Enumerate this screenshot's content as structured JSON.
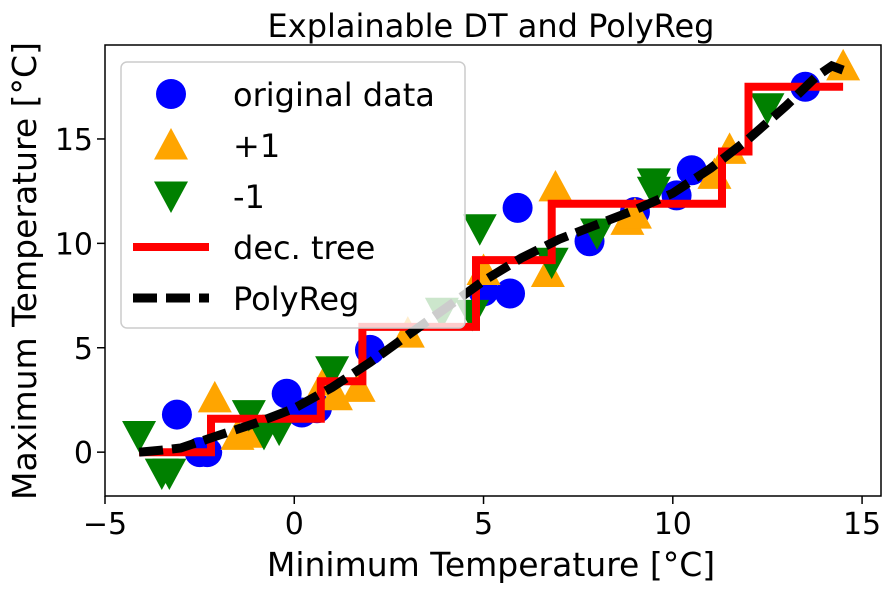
{
  "chart_data": {
    "type": "scatter",
    "title": "Explainable DT and PolyReg",
    "xlabel": "Minimum Temperature [°C]",
    "ylabel": "Maximum Temperature [°C]",
    "xlim": [
      -5,
      15.5
    ],
    "ylim": [
      -2.1,
      19.5
    ],
    "xticks": [
      -5,
      0,
      5,
      10,
      15
    ],
    "xtick_labels": [
      "−5",
      "0",
      "5",
      "10",
      "15"
    ],
    "yticks": [
      0,
      5,
      10,
      15
    ],
    "ytick_labels": [
      "0",
      "5",
      "10",
      "15"
    ],
    "grid": false,
    "legend_position": "upper-left",
    "series": [
      {
        "name": "original data",
        "kind": "scatter",
        "marker": "circle",
        "color": "#0000ff",
        "points": [
          [
            -3.1,
            1.8
          ],
          [
            -2.5,
            0.0
          ],
          [
            -2.3,
            0.0
          ],
          [
            -0.2,
            2.8
          ],
          [
            0.2,
            1.9
          ],
          [
            0.6,
            2.1
          ],
          [
            2.0,
            4.9
          ],
          [
            5.0,
            7.7
          ],
          [
            5.7,
            7.6
          ],
          [
            5.9,
            11.7
          ],
          [
            7.8,
            10.1
          ],
          [
            9.0,
            11.5
          ],
          [
            10.1,
            12.3
          ],
          [
            10.5,
            13.5
          ],
          [
            13.5,
            17.5
          ]
        ]
      },
      {
        "name": "+1",
        "kind": "scatter",
        "marker": "triangle-up",
        "color": "#ffa500",
        "points": [
          [
            -2.1,
            2.6
          ],
          [
            -1.5,
            0.8
          ],
          [
            -1.2,
            0.9
          ],
          [
            0.8,
            3.4
          ],
          [
            1.1,
            2.7
          ],
          [
            1.7,
            3.1
          ],
          [
            3.0,
            5.7
          ],
          [
            5.0,
            8.7
          ],
          [
            6.7,
            8.6
          ],
          [
            6.9,
            12.7
          ],
          [
            8.8,
            11.1
          ],
          [
            9.0,
            11.4
          ],
          [
            11.1,
            13.3
          ],
          [
            11.5,
            14.5
          ],
          [
            14.5,
            18.5
          ]
        ]
      },
      {
        "name": "-1",
        "kind": "scatter",
        "marker": "triangle-down",
        "color": "#008000",
        "points": [
          [
            -4.1,
            0.8
          ],
          [
            -3.5,
            -1.0
          ],
          [
            -3.3,
            -1.0
          ],
          [
            -1.2,
            1.8
          ],
          [
            -0.8,
            0.9
          ],
          [
            -0.4,
            1.1
          ],
          [
            1.0,
            3.9
          ],
          [
            3.9,
            6.7
          ],
          [
            4.7,
            6.6
          ],
          [
            4.9,
            10.7
          ],
          [
            6.8,
            9.1
          ],
          [
            8.0,
            10.5
          ],
          [
            9.5,
            12.9
          ],
          [
            9.5,
            12.5
          ],
          [
            12.5,
            16.5
          ]
        ]
      },
      {
        "name": "dec. tree",
        "kind": "step",
        "color": "#ff0000",
        "points": [
          [
            -4.1,
            0.0
          ],
          [
            -2.2,
            0.0
          ],
          [
            -2.2,
            1.6
          ],
          [
            0.7,
            1.6
          ],
          [
            0.7,
            3.4
          ],
          [
            1.8,
            3.4
          ],
          [
            1.8,
            6.0
          ],
          [
            4.8,
            6.0
          ],
          [
            4.8,
            9.2
          ],
          [
            6.8,
            9.2
          ],
          [
            6.8,
            11.9
          ],
          [
            11.3,
            11.9
          ],
          [
            11.3,
            14.4
          ],
          [
            12.0,
            14.4
          ],
          [
            12.0,
            17.5
          ],
          [
            14.5,
            17.5
          ]
        ]
      },
      {
        "name": "PolyReg",
        "kind": "line",
        "style": "dashed",
        "color": "#000000",
        "points": [
          [
            -4.1,
            0.0
          ],
          [
            -3.5,
            0.1
          ],
          [
            -3.0,
            0.2
          ],
          [
            -2.5,
            0.5
          ],
          [
            -2.0,
            0.8
          ],
          [
            -1.0,
            1.4
          ],
          [
            0.0,
            2.1
          ],
          [
            1.0,
            3.1
          ],
          [
            2.0,
            4.3
          ],
          [
            3.0,
            5.6
          ],
          [
            4.0,
            6.9
          ],
          [
            5.0,
            8.2
          ],
          [
            6.0,
            9.3
          ],
          [
            7.0,
            10.2
          ],
          [
            8.0,
            10.9
          ],
          [
            9.0,
            11.6
          ],
          [
            10.0,
            12.4
          ],
          [
            11.0,
            13.6
          ],
          [
            12.0,
            15.0
          ],
          [
            13.0,
            16.6
          ],
          [
            13.8,
            18.0
          ],
          [
            14.2,
            18.5
          ],
          [
            14.5,
            18.3
          ]
        ]
      }
    ]
  }
}
